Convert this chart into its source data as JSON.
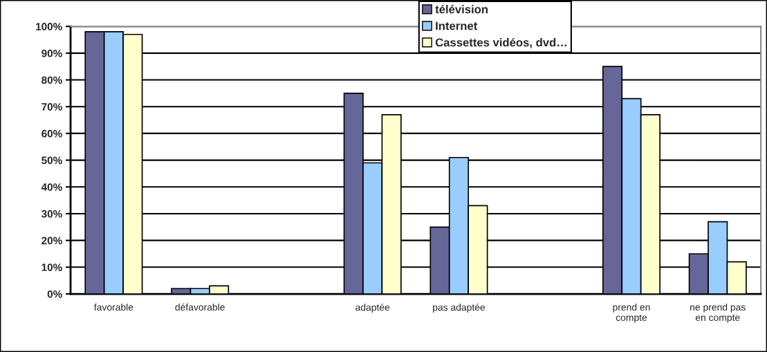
{
  "chart_data": {
    "type": "bar",
    "categories": [
      "favorable",
      "défavorable",
      null,
      "adaptée",
      "pas adaptée",
      null,
      "prend en\ncompte",
      "ne prend pas\nen compte"
    ],
    "series": [
      {
        "name": "télévision",
        "color": "#666699",
        "values": [
          98,
          2,
          null,
          75,
          25,
          null,
          85,
          15
        ]
      },
      {
        "name": "Internet",
        "color": "#99ccff",
        "values": [
          98,
          2,
          null,
          49,
          51,
          null,
          73,
          27
        ]
      },
      {
        "name": "Cassettes vidéos, dvd…",
        "color": "#ffffcc",
        "values": [
          97,
          3,
          null,
          67,
          33,
          null,
          67,
          12
        ]
      }
    ],
    "ylim": [
      0,
      100
    ],
    "yticks": [
      {
        "value": 0,
        "label": "0%"
      },
      {
        "value": 10,
        "label": "10%"
      },
      {
        "value": 20,
        "label": "20%"
      },
      {
        "value": 30,
        "label": "30%"
      },
      {
        "value": 40,
        "label": "40%"
      },
      {
        "value": 50,
        "label": "50%"
      },
      {
        "value": 60,
        "label": "60%"
      },
      {
        "value": 70,
        "label": "70%"
      },
      {
        "value": 80,
        "label": "80%"
      },
      {
        "value": 90,
        "label": "90%"
      },
      {
        "value": 100,
        "label": "100%"
      }
    ],
    "grid": "y",
    "legend": "top"
  }
}
